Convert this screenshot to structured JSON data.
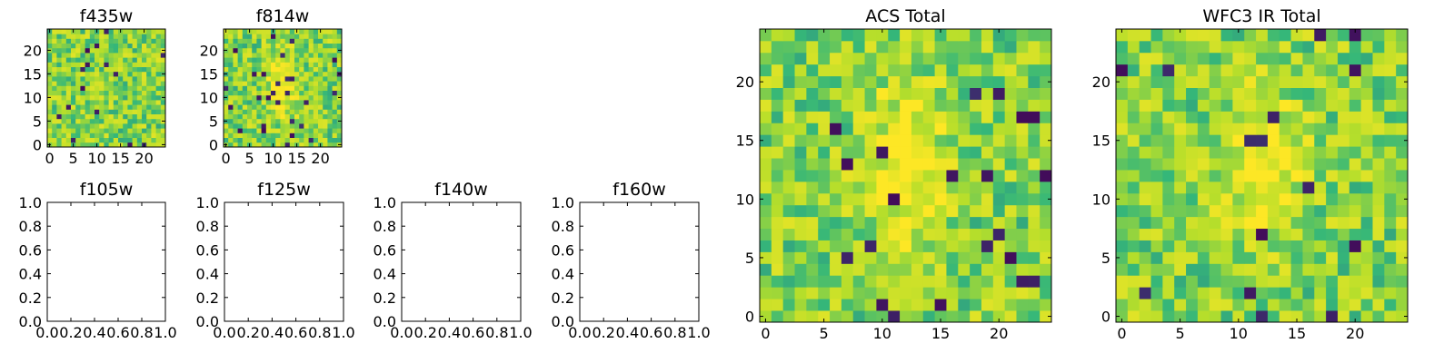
{
  "figure": {
    "colormap": "viridis",
    "colors": {
      "min": "#440154",
      "low": "#31688e",
      "mid": "#35b779",
      "high": "#b5de2b",
      "max": "#fde725"
    }
  },
  "chart_data": [
    {
      "type": "heatmap",
      "title": "f435w",
      "grid_size": 25,
      "xlim": [
        -0.5,
        24.5
      ],
      "ylim": [
        -0.5,
        24.5
      ],
      "xticks": [
        "0",
        "5",
        "10",
        "15",
        "20"
      ],
      "yticks": [
        "0",
        "5",
        "10",
        "15",
        "20"
      ],
      "pattern": "noise",
      "seed": 435
    },
    {
      "type": "heatmap",
      "title": "f814w",
      "grid_size": 25,
      "xlim": [
        -0.5,
        24.5
      ],
      "ylim": [
        -0.5,
        24.5
      ],
      "xticks": [
        "0",
        "5",
        "10",
        "15",
        "20"
      ],
      "yticks": [
        "0",
        "5",
        "10",
        "15",
        "20"
      ],
      "pattern": "central source",
      "seed": 814
    },
    {
      "type": "empty",
      "title": "f105w",
      "xlim": [
        0,
        1
      ],
      "ylim": [
        0,
        1
      ],
      "xticks": [
        "0.0",
        "0.2",
        "0.4",
        "0.6",
        "0.8",
        "1.0"
      ],
      "yticks": [
        "0.0",
        "0.2",
        "0.4",
        "0.6",
        "0.8",
        "1.0"
      ]
    },
    {
      "type": "empty",
      "title": "f125w",
      "xlim": [
        0,
        1
      ],
      "ylim": [
        0,
        1
      ],
      "xticks": [
        "0.0",
        "0.2",
        "0.4",
        "0.6",
        "0.8",
        "1.0"
      ],
      "yticks": [
        "0.0",
        "0.2",
        "0.4",
        "0.6",
        "0.8",
        "1.0"
      ]
    },
    {
      "type": "empty",
      "title": "f140w",
      "xlim": [
        0,
        1
      ],
      "ylim": [
        0,
        1
      ],
      "xticks": [
        "0.0",
        "0.2",
        "0.4",
        "0.6",
        "0.8",
        "1.0"
      ],
      "yticks": [
        "0.0",
        "0.2",
        "0.4",
        "0.6",
        "0.8",
        "1.0"
      ]
    },
    {
      "type": "empty",
      "title": "f160w",
      "xlim": [
        0,
        1
      ],
      "ylim": [
        0,
        1
      ],
      "xticks": [
        "0.0",
        "0.2",
        "0.4",
        "0.6",
        "0.8",
        "1.0"
      ],
      "yticks": [
        "0.0",
        "0.2",
        "0.4",
        "0.6",
        "0.8",
        "1.0"
      ]
    },
    {
      "type": "heatmap",
      "title": "ACS Total",
      "grid_size": 25,
      "xlim": [
        -0.5,
        24.5
      ],
      "ylim": [
        -0.5,
        24.5
      ],
      "xticks": [
        "0",
        "5",
        "10",
        "15",
        "20"
      ],
      "yticks": [
        "0",
        "5",
        "10",
        "15",
        "20"
      ],
      "pattern": "central source",
      "seed": 1001
    },
    {
      "type": "heatmap",
      "title": "WFC3 IR Total",
      "grid_size": 25,
      "xlim": [
        -0.5,
        24.5
      ],
      "ylim": [
        -0.5,
        24.5
      ],
      "xticks": [
        "0",
        "5",
        "10",
        "15",
        "20"
      ],
      "yticks": [
        "0",
        "5",
        "10",
        "15",
        "20"
      ],
      "pattern": "central source",
      "seed": 3003
    }
  ]
}
